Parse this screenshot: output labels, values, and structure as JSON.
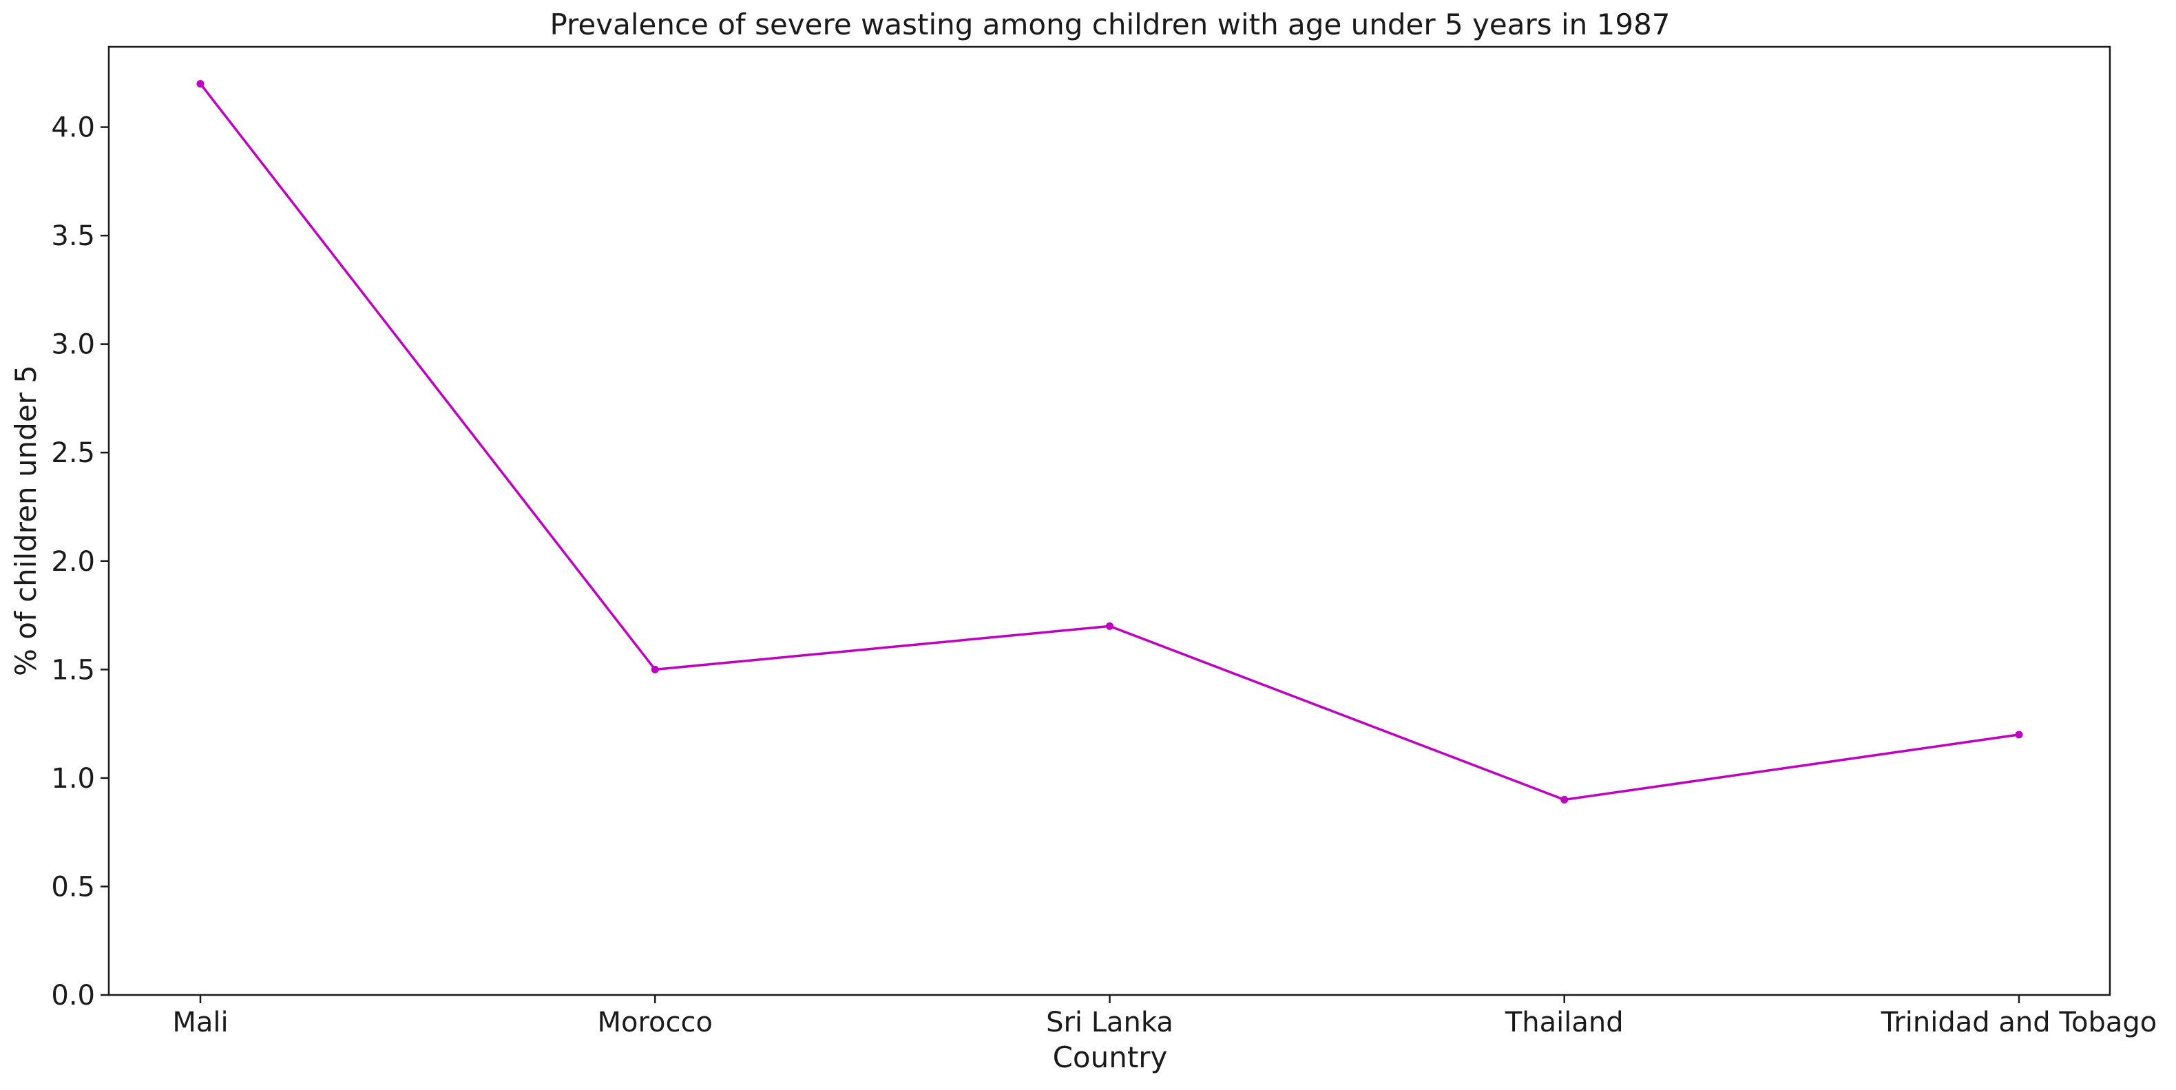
{
  "chart_data": {
    "type": "line",
    "title": "Prevalence of severe wasting among children with age under 5 years in 1987",
    "xlabel": "Country",
    "ylabel": "% of children under 5",
    "categories": [
      "Mali",
      "Morocco",
      "Sri Lanka",
      "Thailand",
      "Trinidad and Tobago"
    ],
    "series": [
      {
        "values": [
          4.2,
          1.5,
          1.7,
          0.9,
          1.2
        ],
        "color": "#c000c0"
      }
    ],
    "ylim": [
      0,
      4.37
    ],
    "yticks": [
      0.0,
      0.5,
      1.0,
      1.5,
      2.0,
      2.5,
      3.0,
      3.5,
      4.0
    ],
    "ytick_labels": [
      "0.0",
      "0.5",
      "1.0",
      "1.5",
      "2.0",
      "2.5",
      "3.0",
      "3.5",
      "4.0"
    ],
    "grid": false,
    "legend": "none"
  }
}
